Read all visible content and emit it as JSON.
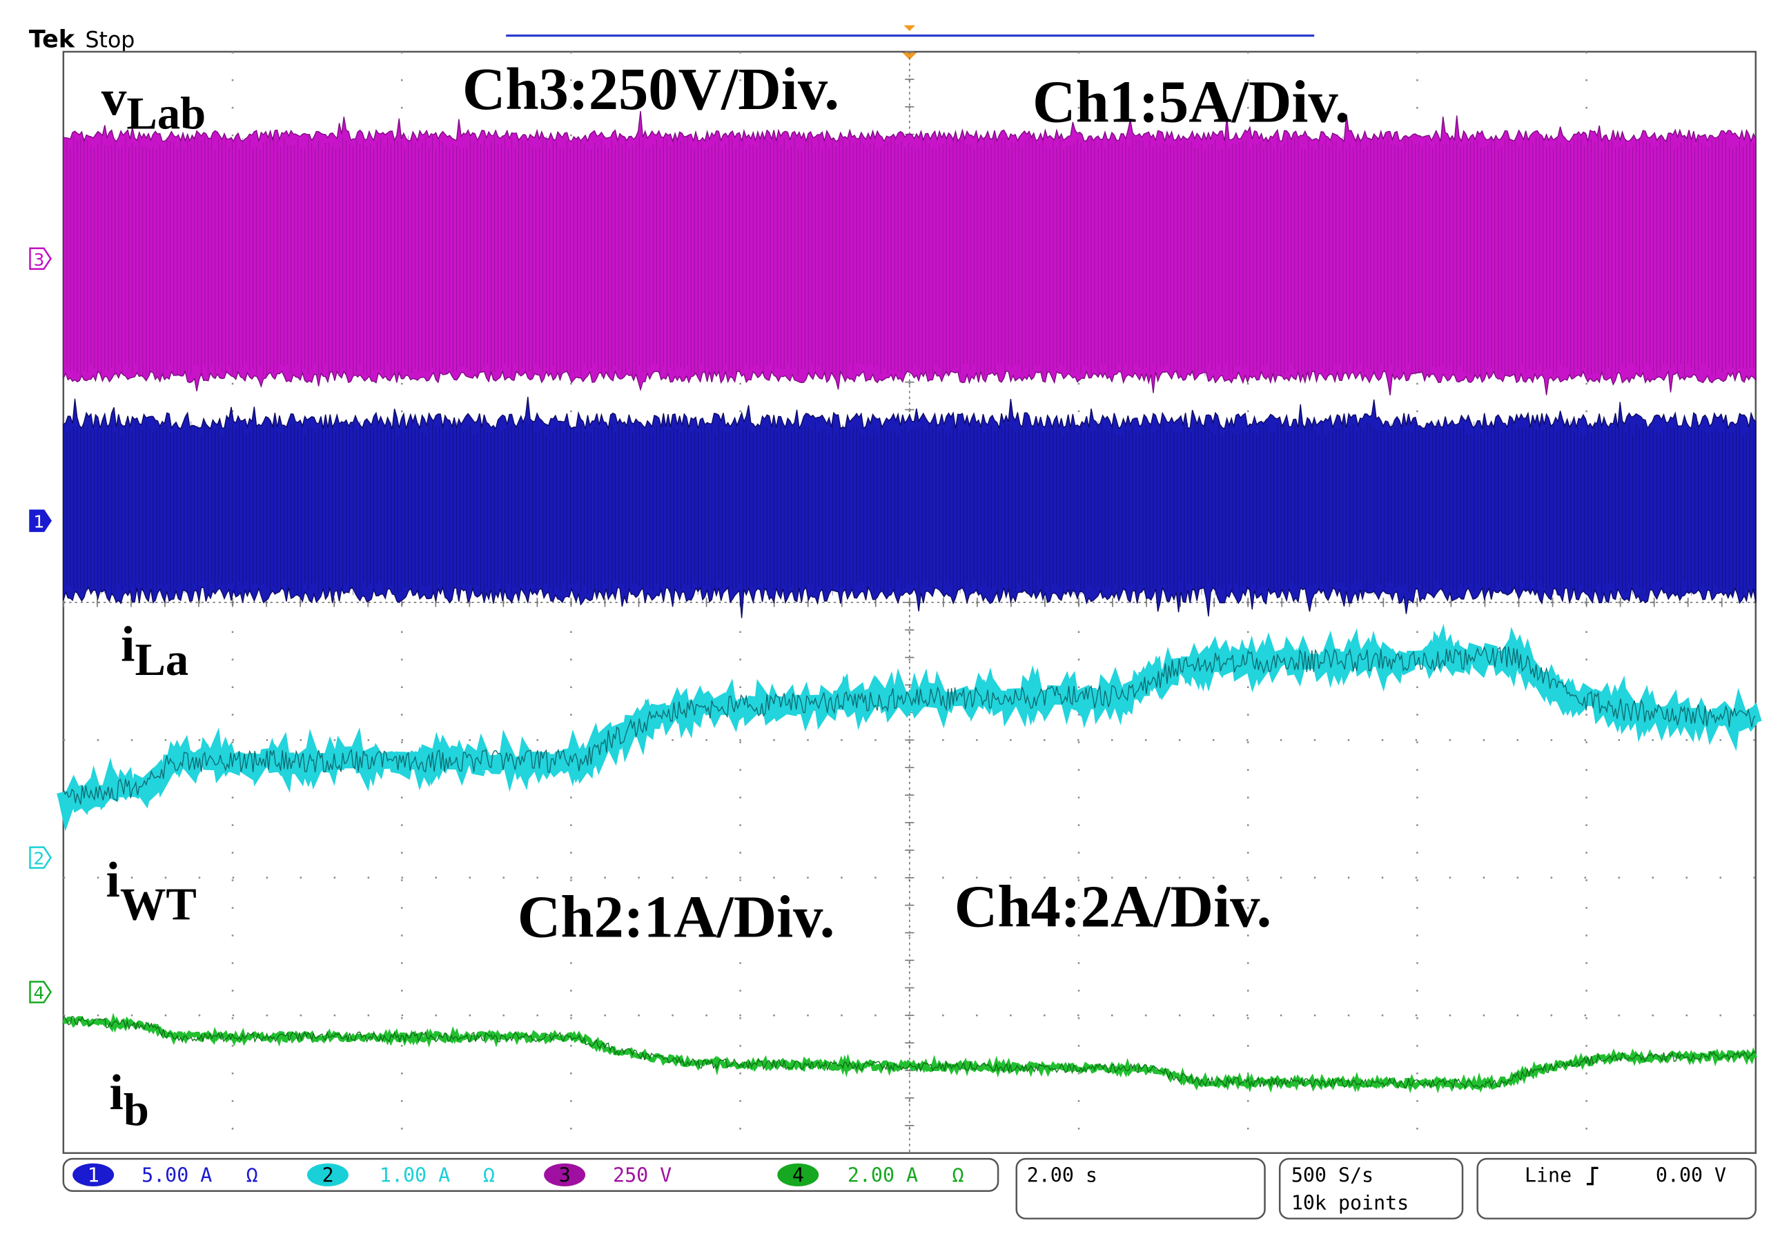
{
  "header": {
    "brand": "Tek",
    "status": "Stop"
  },
  "annotations": {
    "v_lab": {
      "main": "v",
      "sub": "Lab"
    },
    "ch3_scale": "Ch3:250V/Div.",
    "ch1_scale": "Ch1:5A/Div.",
    "i_la": {
      "main": "i",
      "sub": "La"
    },
    "i_wt": {
      "main": "i",
      "sub": "WT"
    },
    "ch2_scale": "Ch2:1A/Div.",
    "ch4_scale": "Ch4:2A/Div.",
    "i_b": {
      "main": "i",
      "sub": "b"
    }
  },
  "channel_markers": [
    "3",
    "1",
    "2",
    "4"
  ],
  "status_bar": {
    "channels": [
      {
        "number": "1",
        "scale": "5.00 A",
        "unit_symbol": "Ω"
      },
      {
        "number": "2",
        "scale": "1.00 A",
        "unit_symbol": "Ω"
      },
      {
        "number": "3",
        "scale": "250 V"
      },
      {
        "number": "4",
        "scale": "2.00 A",
        "unit_symbol": "Ω"
      }
    ],
    "timebase": "2.00 s",
    "sample_rate": "500 S/s",
    "record_length": "10k points",
    "trigger": {
      "source": "Line",
      "level": "0.00 V"
    }
  }
}
